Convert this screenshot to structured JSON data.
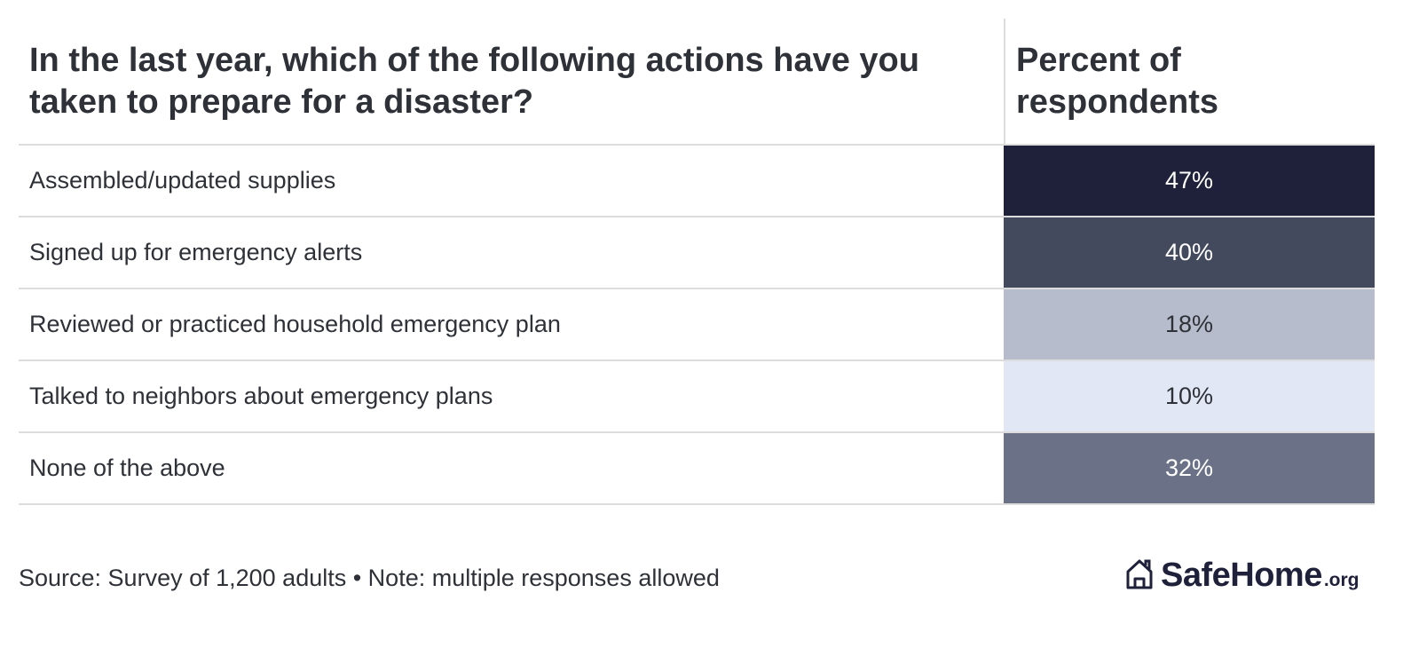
{
  "chart_data": {
    "type": "table",
    "columns": [
      "In the last year, which of the following actions have you taken to prepare for a disaster?",
      "Percent of respondents"
    ],
    "rows": [
      {
        "label": "Assembled/updated supplies",
        "value": 47,
        "display": "47%"
      },
      {
        "label": "Signed up for emergency alerts",
        "value": 40,
        "display": "40%"
      },
      {
        "label": "Reviewed or practiced household emergency plan",
        "value": 18,
        "display": "18%"
      },
      {
        "label": "Talked to neighbors about emergency plans",
        "value": 10,
        "display": "10%"
      },
      {
        "label": "None of the above",
        "value": 32,
        "display": "32%"
      }
    ],
    "heatmap_colors": {
      "47": "#1e2139",
      "40": "#444a5e",
      "32": "#6b7287",
      "18": "#b6bccc",
      "10": "#e1e7f4"
    }
  },
  "footer": {
    "note": "Source: Survey of 1,200 adults • Note: multiple responses allowed"
  },
  "brand": {
    "name": "SafeHome",
    "tld": ".org",
    "icon": "house-icon",
    "color": "#1e2139"
  }
}
